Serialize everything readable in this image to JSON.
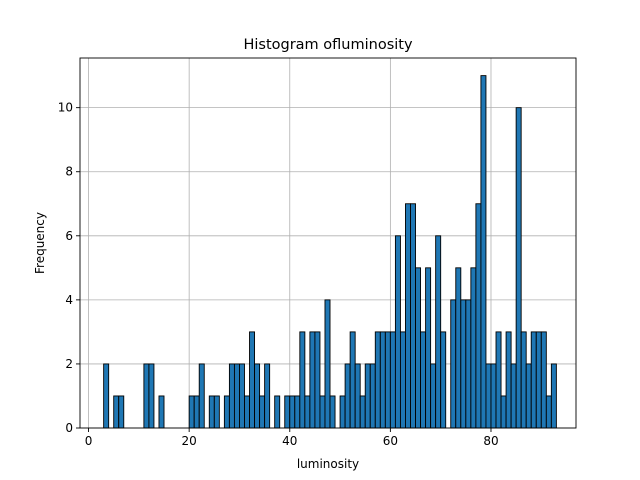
{
  "chart_data": {
    "type": "bar",
    "title": "Histogram ofluminosity",
    "xlabel": "luminosity",
    "ylabel": "Frequency",
    "xlim": [
      -1.7,
      96.9
    ],
    "ylim": [
      0,
      11.55
    ],
    "grid": true,
    "xticks": [
      0,
      20,
      40,
      60,
      80
    ],
    "yticks": [
      0,
      2,
      4,
      6,
      8,
      10
    ],
    "bin_width": 1,
    "bins": [
      {
        "x": 3,
        "y": 2
      },
      {
        "x": 5,
        "y": 1
      },
      {
        "x": 6,
        "y": 1
      },
      {
        "x": 11,
        "y": 2
      },
      {
        "x": 12,
        "y": 2
      },
      {
        "x": 14,
        "y": 1
      },
      {
        "x": 20,
        "y": 1
      },
      {
        "x": 21,
        "y": 1
      },
      {
        "x": 22,
        "y": 2
      },
      {
        "x": 24,
        "y": 1
      },
      {
        "x": 25,
        "y": 1
      },
      {
        "x": 27,
        "y": 1
      },
      {
        "x": 28,
        "y": 2
      },
      {
        "x": 29,
        "y": 2
      },
      {
        "x": 30,
        "y": 2
      },
      {
        "x": 31,
        "y": 1
      },
      {
        "x": 32,
        "y": 3
      },
      {
        "x": 33,
        "y": 2
      },
      {
        "x": 34,
        "y": 1
      },
      {
        "x": 35,
        "y": 2
      },
      {
        "x": 37,
        "y": 1
      },
      {
        "x": 39,
        "y": 1
      },
      {
        "x": 40,
        "y": 1
      },
      {
        "x": 41,
        "y": 1
      },
      {
        "x": 42,
        "y": 3
      },
      {
        "x": 43,
        "y": 1
      },
      {
        "x": 44,
        "y": 3
      },
      {
        "x": 45,
        "y": 3
      },
      {
        "x": 46,
        "y": 1
      },
      {
        "x": 47,
        "y": 4
      },
      {
        "x": 48,
        "y": 1
      },
      {
        "x": 50,
        "y": 1
      },
      {
        "x": 51,
        "y": 2
      },
      {
        "x": 52,
        "y": 3
      },
      {
        "x": 53,
        "y": 2
      },
      {
        "x": 54,
        "y": 1
      },
      {
        "x": 55,
        "y": 2
      },
      {
        "x": 56,
        "y": 2
      },
      {
        "x": 57,
        "y": 3
      },
      {
        "x": 58,
        "y": 3
      },
      {
        "x": 59,
        "y": 3
      },
      {
        "x": 60,
        "y": 3
      },
      {
        "x": 61,
        "y": 6
      },
      {
        "x": 62,
        "y": 3
      },
      {
        "x": 63,
        "y": 7
      },
      {
        "x": 64,
        "y": 7
      },
      {
        "x": 65,
        "y": 5
      },
      {
        "x": 66,
        "y": 3
      },
      {
        "x": 67,
        "y": 5
      },
      {
        "x": 68,
        "y": 2
      },
      {
        "x": 69,
        "y": 6
      },
      {
        "x": 70,
        "y": 3
      },
      {
        "x": 72,
        "y": 4
      },
      {
        "x": 73,
        "y": 5
      },
      {
        "x": 74,
        "y": 4
      },
      {
        "x": 75,
        "y": 4
      },
      {
        "x": 76,
        "y": 5
      },
      {
        "x": 77,
        "y": 7
      },
      {
        "x": 78,
        "y": 11
      },
      {
        "x": 79,
        "y": 2
      },
      {
        "x": 80,
        "y": 2
      },
      {
        "x": 81,
        "y": 3
      },
      {
        "x": 82,
        "y": 1
      },
      {
        "x": 83,
        "y": 3
      },
      {
        "x": 84,
        "y": 2
      },
      {
        "x": 85,
        "y": 10
      },
      {
        "x": 86,
        "y": 3
      },
      {
        "x": 87,
        "y": 2
      },
      {
        "x": 88,
        "y": 3
      },
      {
        "x": 89,
        "y": 3
      },
      {
        "x": 90,
        "y": 3
      },
      {
        "x": 91,
        "y": 1
      },
      {
        "x": 92,
        "y": 2
      }
    ]
  }
}
